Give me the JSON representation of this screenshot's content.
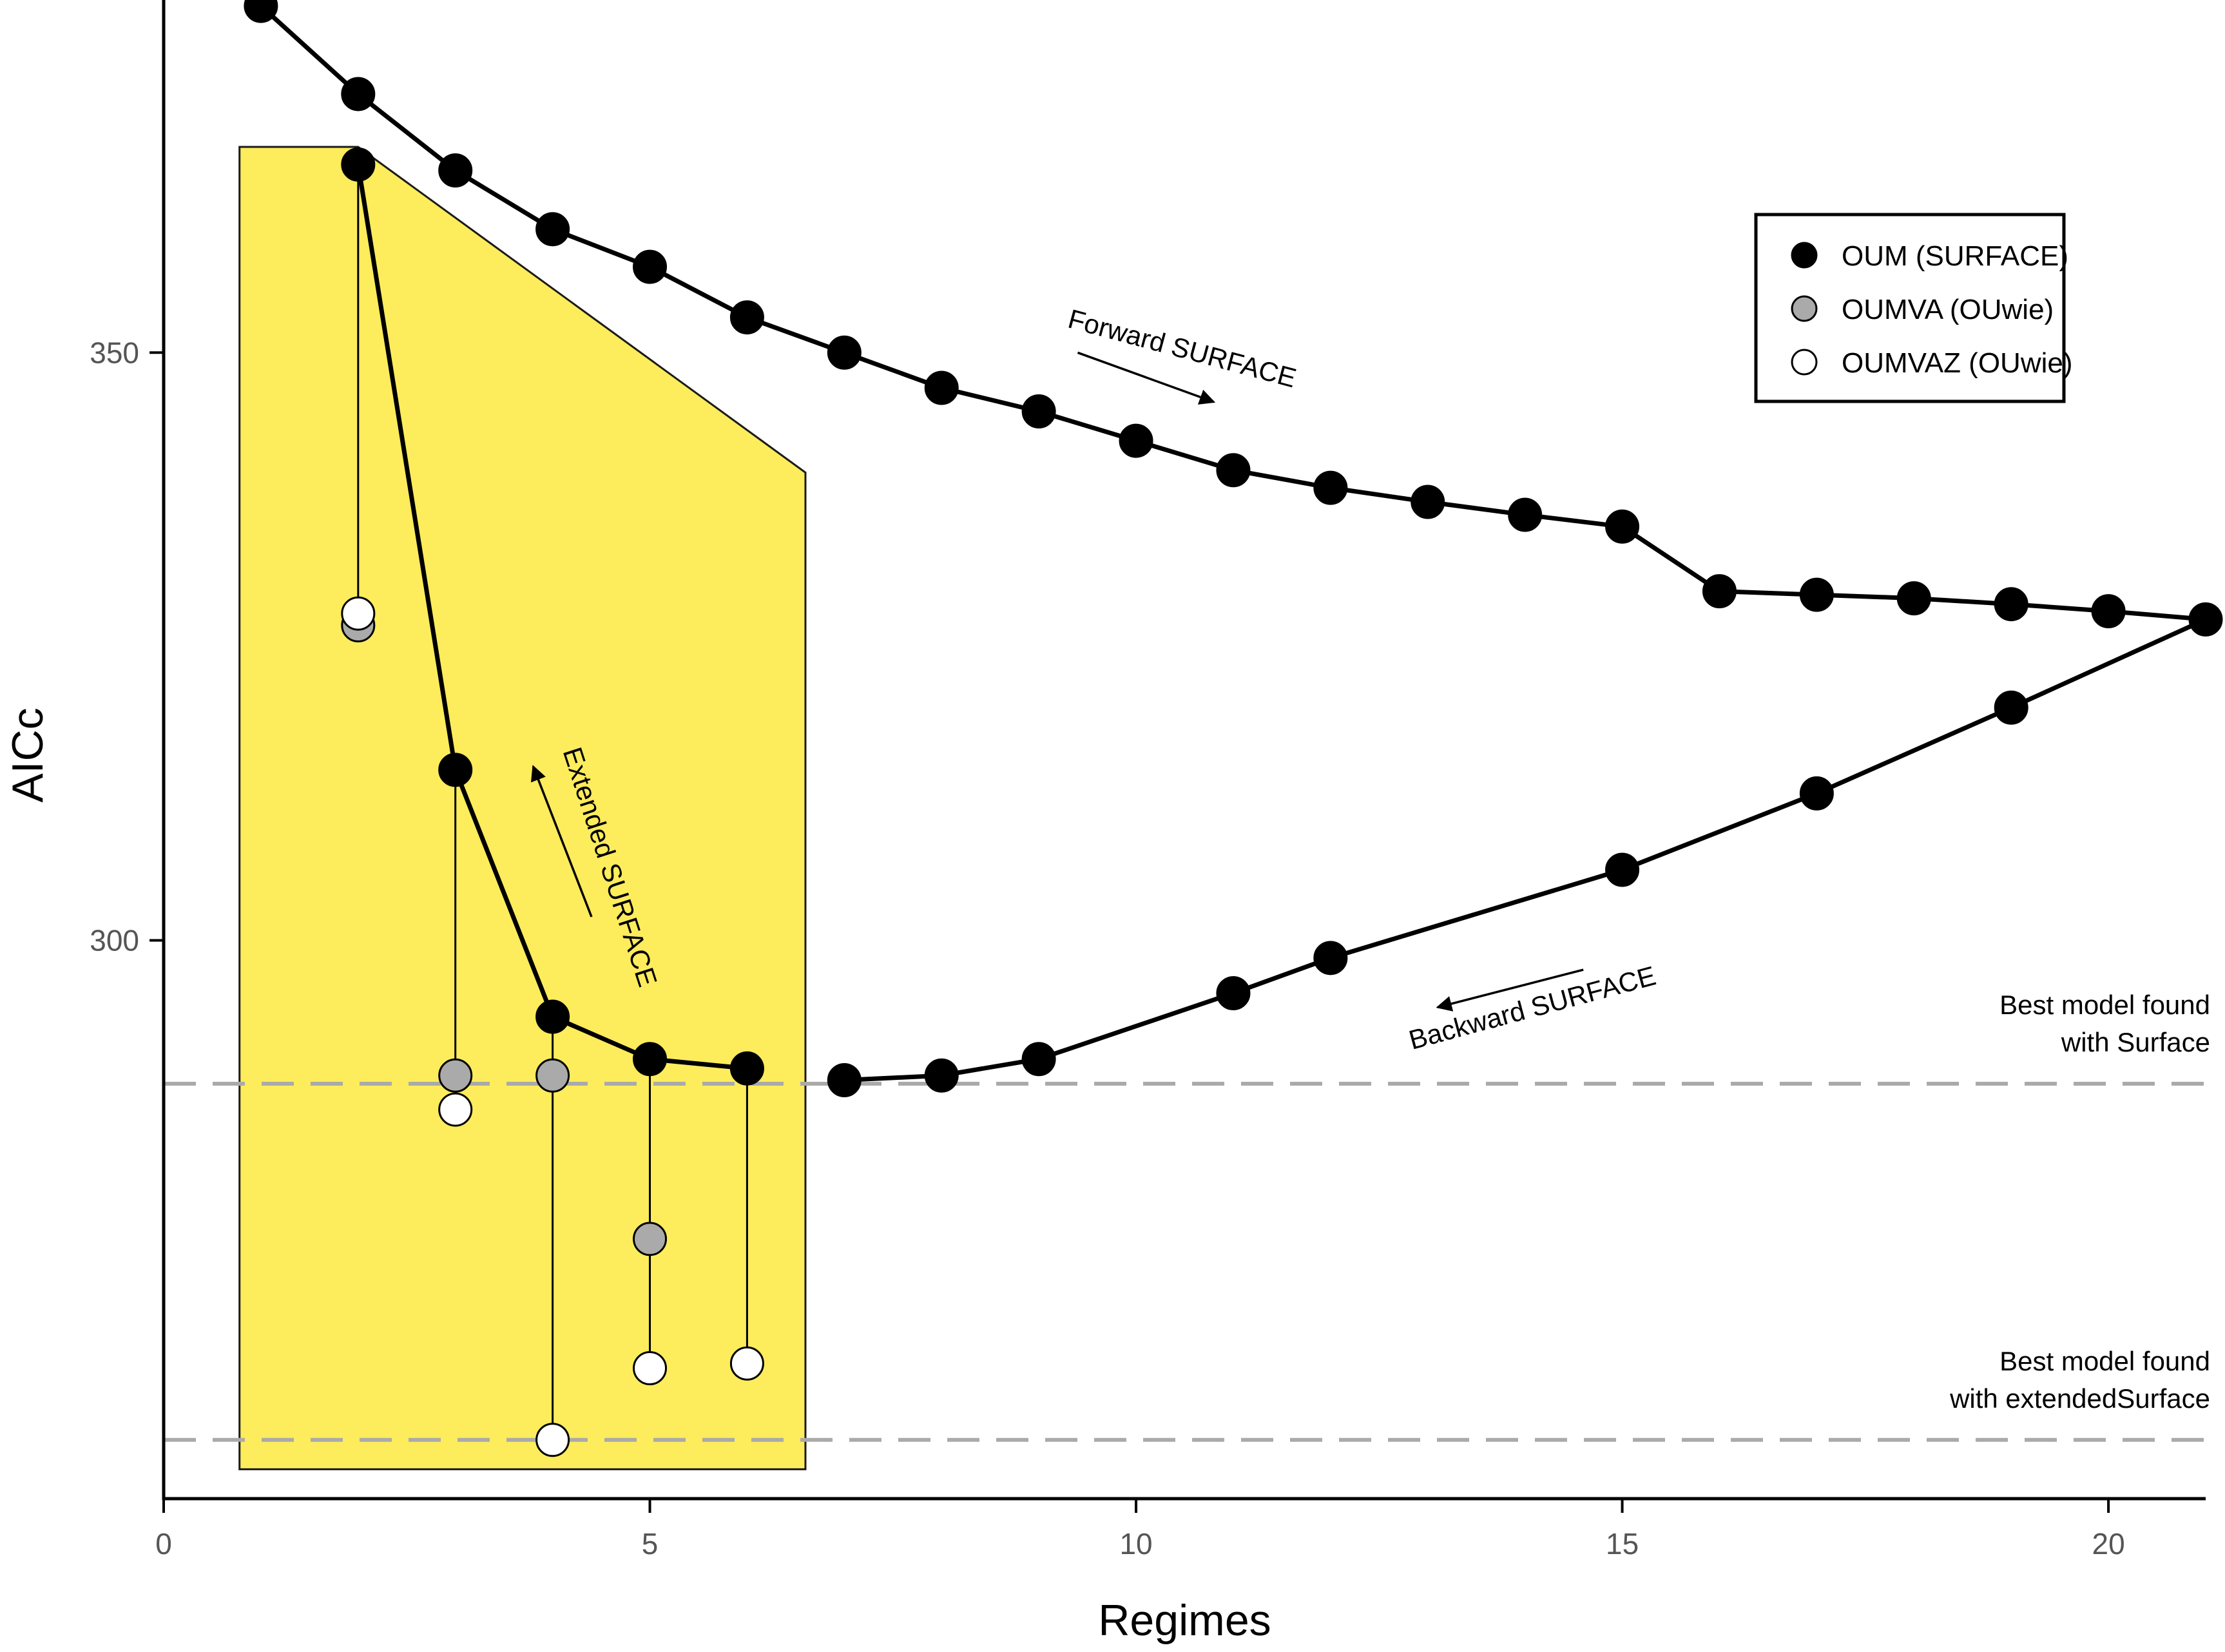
{
  "chart_data": {
    "type": "scatter",
    "xlabel": "Regimes",
    "ylabel": "AICc",
    "xlim": [
      0,
      21
    ],
    "ylim": [
      252.5,
      380
    ],
    "x_ticks": [
      0,
      5,
      10,
      15,
      20
    ],
    "y_ticks": [
      300,
      350
    ],
    "grid": false,
    "legend": {
      "position": "top-right",
      "entries": [
        {
          "label": "OUM (SURFACE)",
          "fill": "#000000"
        },
        {
          "label": "OUMVA (OUwie)",
          "fill": "#aaaaaa"
        },
        {
          "label": "OUMVAZ (OUwie)",
          "fill": "#ffffff"
        }
      ]
    },
    "series": {
      "forward": {
        "name": "OUM (SURFACE)",
        "points": [
          [
            1,
            379.5
          ],
          [
            2,
            372
          ],
          [
            3,
            365.5
          ],
          [
            4,
            360.5
          ],
          [
            5,
            357.3
          ],
          [
            6,
            353
          ],
          [
            7,
            350
          ],
          [
            8,
            347
          ],
          [
            9,
            345
          ],
          [
            10,
            342.5
          ],
          [
            11,
            340
          ],
          [
            12,
            338.5
          ],
          [
            13,
            337.3
          ],
          [
            14,
            336.2
          ],
          [
            15,
            335.2
          ],
          [
            16,
            329.7
          ],
          [
            17,
            329.4
          ],
          [
            18,
            329.1
          ],
          [
            19,
            328.6
          ],
          [
            20,
            328
          ],
          [
            21,
            327.3
          ]
        ]
      },
      "backward": {
        "name": "OUM (SURFACE)",
        "points": [
          [
            21,
            327.3
          ],
          [
            19,
            319.8
          ],
          [
            17,
            312.5
          ],
          [
            15,
            306
          ],
          [
            12,
            298.5
          ],
          [
            11,
            295.5
          ],
          [
            9,
            289.9
          ],
          [
            8,
            288.5
          ],
          [
            7,
            288.1
          ]
        ]
      },
      "extended": {
        "name": "OUM (SURFACE)",
        "points": [
          [
            6,
            289.1
          ],
          [
            5,
            289.9
          ],
          [
            4,
            293.5
          ],
          [
            3,
            314.5
          ],
          [
            2,
            366
          ]
        ]
      },
      "oumva": {
        "name": "OUMVA (OUwie)",
        "points": [
          [
            2,
            326.8
          ],
          [
            3,
            288.5
          ],
          [
            4,
            288.5
          ],
          [
            5,
            274.6
          ]
        ]
      },
      "oumvaz": {
        "name": "OUMVAZ (OUwie)",
        "points": [
          [
            2,
            327.8
          ],
          [
            3,
            285.6
          ],
          [
            4,
            257.5
          ],
          [
            5,
            263.6
          ],
          [
            6,
            264
          ]
        ]
      }
    },
    "stems": [
      {
        "x": 2,
        "y_top": 366,
        "y_bottom": 326.8
      },
      {
        "x": 3,
        "y_top": 314.5,
        "y_bottom": 285.6
      },
      {
        "x": 4,
        "y_top": 293.5,
        "y_bottom": 257.5
      },
      {
        "x": 5,
        "y_top": 289.9,
        "y_bottom": 263.6
      },
      {
        "x": 6,
        "y_top": 289.1,
        "y_bottom": 264
      }
    ],
    "highlight_region": {
      "fill": "#fdec5c",
      "polygon": [
        [
          0.78,
          367.5
        ],
        [
          2,
          367.5
        ],
        [
          6.6,
          339.8
        ],
        [
          6.6,
          255
        ],
        [
          0.78,
          255
        ]
      ]
    },
    "reference_lines": [
      {
        "y": 287.8,
        "label_lines": [
          "Best model found",
          "with Surface"
        ]
      },
      {
        "y": 257.5,
        "label_lines": [
          "Best model found",
          "with extendedSurface"
        ]
      }
    ],
    "annotations": [
      {
        "text": "Forward SURFACE",
        "x": 10.45,
        "y": 349.6,
        "rotation": 15
      },
      {
        "text": "Backward SURFACE",
        "x": 14.1,
        "y": 293.5,
        "rotation": -15
      },
      {
        "text": "Extended SURFACE",
        "x": 4.5,
        "y": 306,
        "rotation": 72
      }
    ],
    "arrows": [
      {
        "from": [
          9.4,
          350
        ],
        "to": [
          10.8,
          345.8
        ]
      },
      {
        "from": [
          14.6,
          297.5
        ],
        "to": [
          13.1,
          294.3
        ]
      },
      {
        "from": [
          4.4,
          302
        ],
        "to": [
          3.8,
          314.8
        ]
      }
    ],
    "colors": {
      "highlight": "#fdec5c",
      "reference_line": "#aaaaaa",
      "point_forward": "#000000",
      "point_oumva": "#aaaaaa",
      "point_oumvaz": "#ffffff"
    }
  }
}
